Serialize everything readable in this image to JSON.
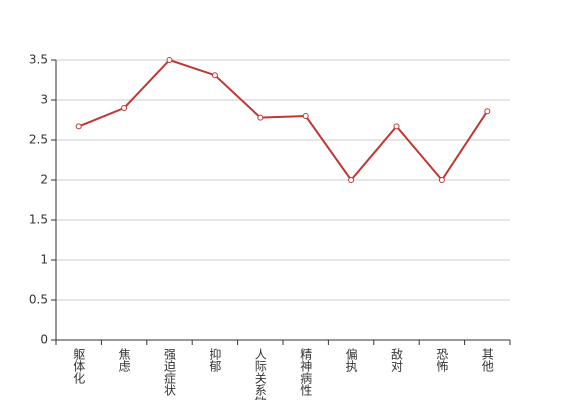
{
  "chart_data": {
    "type": "line",
    "categories": [
      "躯体化",
      "焦虑",
      "强迫症状",
      "抑郁",
      "人际关系敏感",
      "精神病性",
      "偏执",
      "敌对",
      "恐怖",
      "其他"
    ],
    "series": [
      {
        "color": "#c23531",
        "values": [
          2.67,
          2.9,
          3.5,
          3.31,
          2.78,
          2.8,
          2.0,
          2.67,
          2.0,
          2.86
        ]
      }
    ],
    "ylim": [
      0,
      3.5
    ],
    "yticks": [
      0,
      0.5,
      1,
      1.5,
      2,
      2.5,
      3,
      3.5
    ],
    "grid": true
  }
}
